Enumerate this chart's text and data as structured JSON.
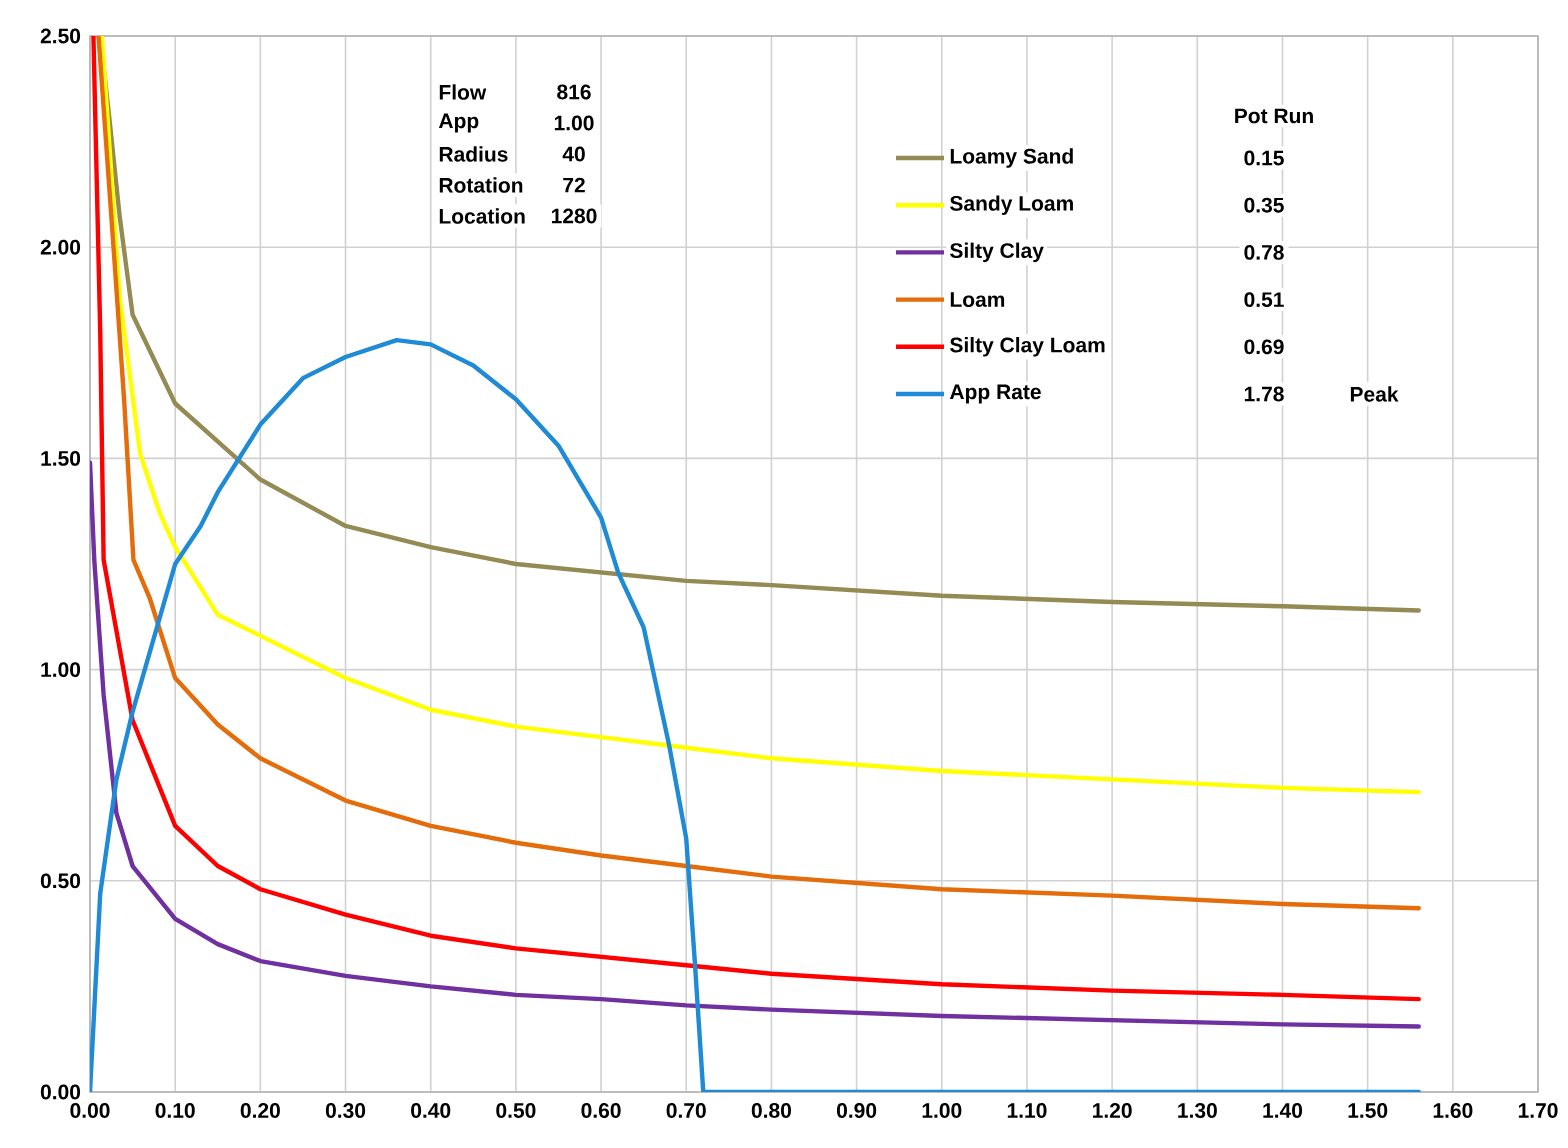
{
  "chart_data": {
    "type": "line",
    "xlim": [
      0,
      1.7
    ],
    "ylim": [
      0,
      2.5
    ],
    "xticks": [
      {
        "value": 0,
        "label": "0.00"
      },
      {
        "value": 0.1,
        "label": "0.10"
      },
      {
        "value": 0.2,
        "label": "0.20"
      },
      {
        "value": 0.3,
        "label": "0.30"
      },
      {
        "value": 0.4,
        "label": "0.40"
      },
      {
        "value": 0.5,
        "label": "0.50"
      },
      {
        "value": 0.6,
        "label": "0.60"
      },
      {
        "value": 0.7,
        "label": "0.70"
      },
      {
        "value": 0.8,
        "label": "0.80"
      },
      {
        "value": 0.9,
        "label": "0.90"
      },
      {
        "value": 1.0,
        "label": "1.00"
      },
      {
        "value": 1.1,
        "label": "1.10"
      },
      {
        "value": 1.2,
        "label": "1.20"
      },
      {
        "value": 1.3,
        "label": "1.30"
      },
      {
        "value": 1.4,
        "label": "1.40"
      },
      {
        "value": 1.5,
        "label": "1.50"
      },
      {
        "value": 1.6,
        "label": "1.60"
      },
      {
        "value": 1.7,
        "label": "1.70"
      }
    ],
    "yticks": [
      {
        "value": 0,
        "label": "0.00"
      },
      {
        "value": 0.5,
        "label": "0.50"
      },
      {
        "value": 1.0,
        "label": "1.00"
      },
      {
        "value": 1.5,
        "label": "1.50"
      },
      {
        "value": 2.0,
        "label": "2.00"
      },
      {
        "value": 2.5,
        "label": "2.50"
      }
    ],
    "grid": true,
    "legend": "top right",
    "series": [
      {
        "name": "Loamy Sand",
        "color": "#948a54",
        "x": [
          0.012,
          0.023,
          0.035,
          0.05,
          0.1,
          0.15,
          0.2,
          0.3,
          0.4,
          0.5,
          0.6,
          0.7,
          0.8,
          1.0,
          1.2,
          1.4,
          1.56
        ],
        "values": [
          2.5,
          2.3,
          2.07,
          1.84,
          1.63,
          1.54,
          1.45,
          1.34,
          1.29,
          1.25,
          1.23,
          1.21,
          1.2,
          1.175,
          1.16,
          1.15,
          1.14
        ]
      },
      {
        "name": "Sandy Loam",
        "color": "#ffff00",
        "x": [
          0.014,
          0.035,
          0.059,
          0.082,
          0.1,
          0.15,
          0.2,
          0.3,
          0.4,
          0.5,
          0.6,
          0.7,
          0.8,
          1.0,
          1.2,
          1.4,
          1.56
        ],
        "values": [
          2.5,
          1.88,
          1.51,
          1.37,
          1.29,
          1.13,
          1.08,
          0.98,
          0.905,
          0.865,
          0.84,
          0.815,
          0.79,
          0.76,
          0.74,
          0.72,
          0.71
        ]
      },
      {
        "name": "Silty Clay",
        "color": "#7030a0",
        "x": [
          0,
          0.005,
          0.016,
          0.031,
          0.05,
          0.1,
          0.15,
          0.2,
          0.3,
          0.4,
          0.5,
          0.6,
          0.7,
          0.8,
          1.0,
          1.2,
          1.4,
          1.56
        ],
        "values": [
          1.49,
          1.26,
          0.94,
          0.66,
          0.535,
          0.41,
          0.35,
          0.31,
          0.275,
          0.25,
          0.23,
          0.22,
          0.205,
          0.195,
          0.18,
          0.17,
          0.16,
          0.155
        ]
      },
      {
        "name": "Loam",
        "color": "#e46c0a",
        "x": [
          0.01,
          0.029,
          0.04,
          0.051,
          0.07,
          0.1,
          0.15,
          0.2,
          0.3,
          0.4,
          0.5,
          0.6,
          0.7,
          0.8,
          1.0,
          1.2,
          1.4,
          1.56
        ],
        "values": [
          2.5,
          1.96,
          1.64,
          1.26,
          1.17,
          0.98,
          0.87,
          0.79,
          0.69,
          0.63,
          0.59,
          0.56,
          0.535,
          0.51,
          0.48,
          0.465,
          0.445,
          0.435
        ]
      },
      {
        "name": "Silty Clay Loam",
        "color": "#ff0000",
        "x": [
          0.004,
          0.012,
          0.016,
          0.05,
          0.1,
          0.15,
          0.2,
          0.3,
          0.4,
          0.5,
          0.6,
          0.7,
          0.8,
          1.0,
          1.2,
          1.4,
          1.56
        ],
        "values": [
          2.5,
          1.8,
          1.26,
          0.88,
          0.63,
          0.535,
          0.48,
          0.42,
          0.37,
          0.34,
          0.32,
          0.3,
          0.28,
          0.255,
          0.24,
          0.23,
          0.22
        ]
      },
      {
        "name": "App Rate",
        "color": "#1f8ad6",
        "x": [
          0,
          0.012,
          0.031,
          0.05,
          0.1,
          0.13,
          0.15,
          0.2,
          0.25,
          0.3,
          0.36,
          0.4,
          0.45,
          0.5,
          0.55,
          0.6,
          0.62,
          0.65,
          0.68,
          0.7,
          0.71,
          0.72,
          1.56
        ],
        "values": [
          0,
          0.47,
          0.74,
          0.9,
          1.25,
          1.34,
          1.42,
          1.58,
          1.69,
          1.74,
          1.78,
          1.77,
          1.72,
          1.64,
          1.53,
          1.36,
          1.23,
          1.1,
          0.82,
          0.6,
          0.31,
          0,
          0
        ]
      }
    ],
    "annotations": [
      "Flow",
      "816",
      "App",
      "1.00",
      "Radius",
      "40",
      "Rotation",
      "72",
      "Location",
      "1280",
      "Pot Run",
      "0.15",
      "0.35",
      "0.78",
      "0.51",
      "0.69",
      "1.78",
      "Peak"
    ]
  }
}
